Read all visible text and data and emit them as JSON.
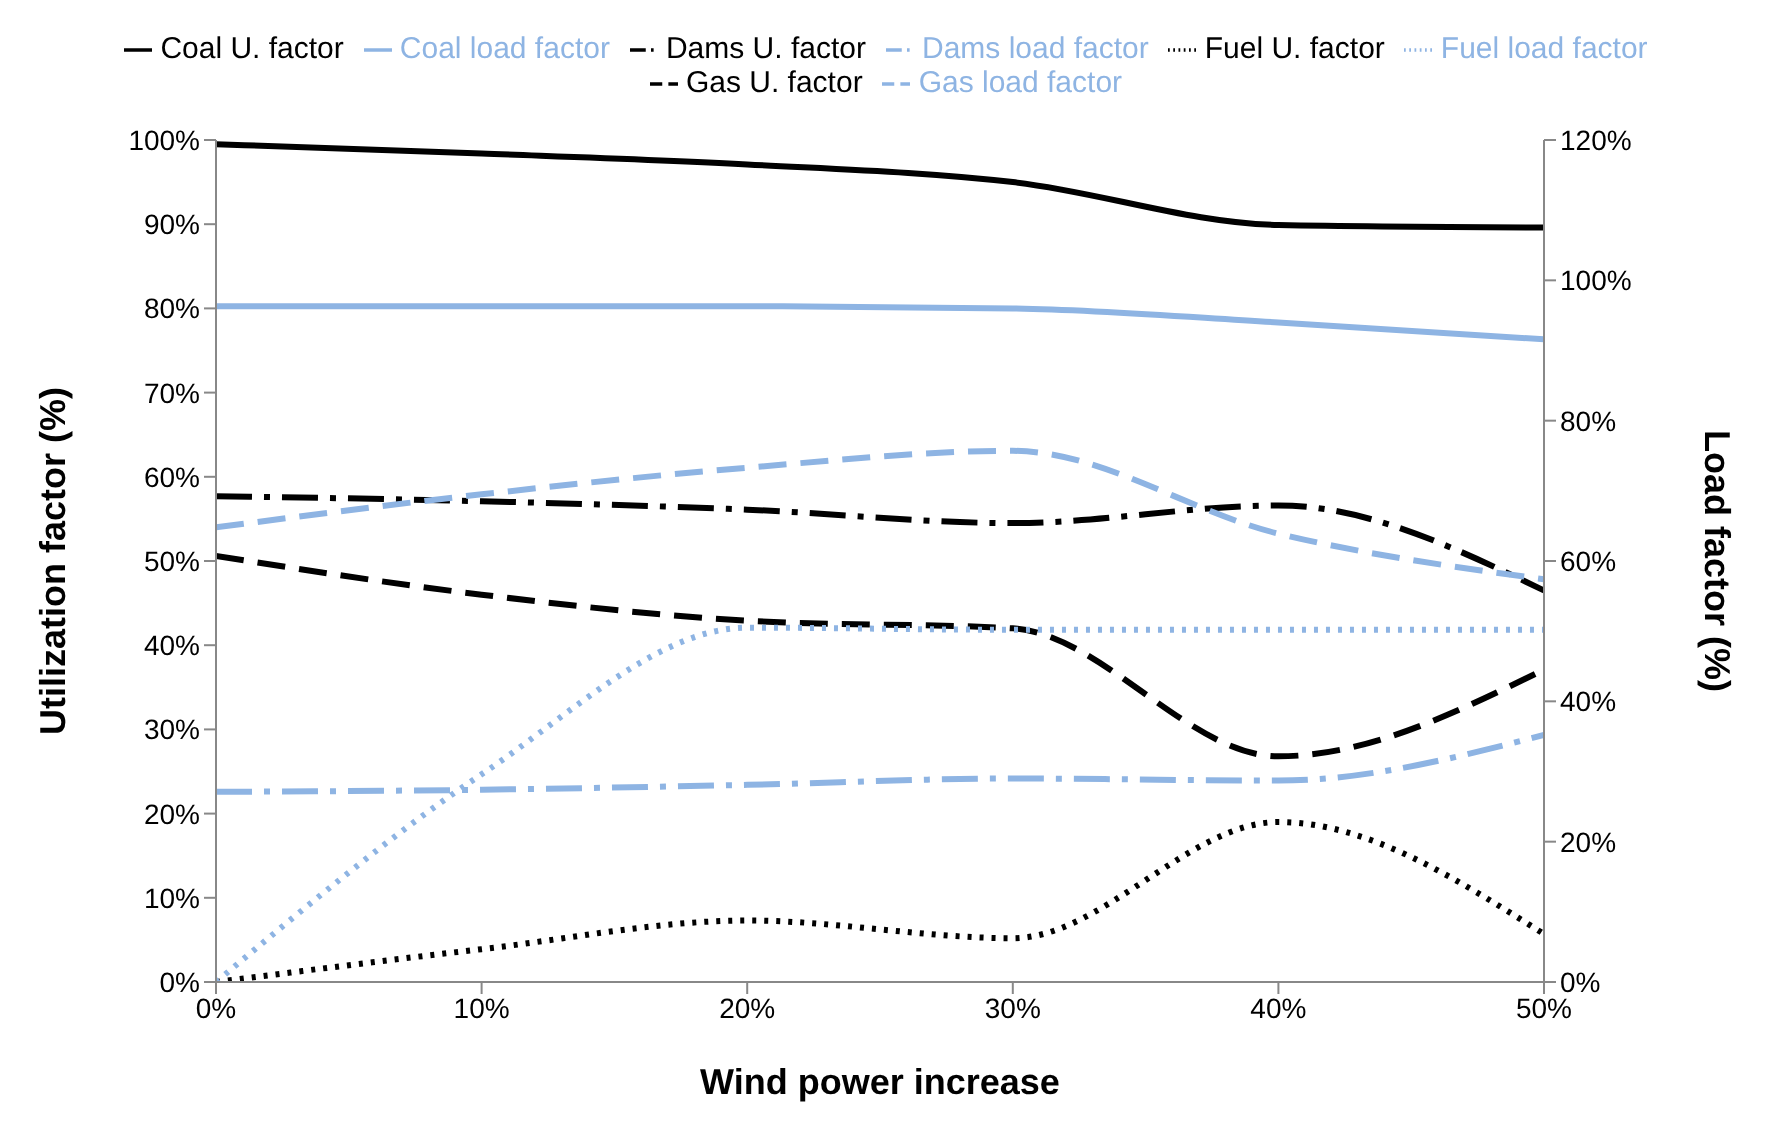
{
  "chart_data": {
    "type": "line",
    "xlabel": "Wind power increase",
    "ylabel": "Utilization factor (%)",
    "y2label": "Load factor (%)",
    "x": [
      0,
      10,
      20,
      30,
      40,
      50
    ],
    "xlim": [
      0,
      50
    ],
    "xticks": [
      {
        "value": 0,
        "label": "0%"
      },
      {
        "value": 10,
        "label": "10%"
      },
      {
        "value": 20,
        "label": "20%"
      },
      {
        "value": 30,
        "label": "30%"
      },
      {
        "value": 40,
        "label": "40%"
      },
      {
        "value": 50,
        "label": "50%"
      }
    ],
    "ylim": [
      0,
      100
    ],
    "yticks": [
      {
        "value": 0,
        "label": "0%"
      },
      {
        "value": 10,
        "label": "10%"
      },
      {
        "value": 20,
        "label": "20%"
      },
      {
        "value": 30,
        "label": "30%"
      },
      {
        "value": 40,
        "label": "40%"
      },
      {
        "value": 50,
        "label": "50%"
      },
      {
        "value": 60,
        "label": "60%"
      },
      {
        "value": 70,
        "label": "70%"
      },
      {
        "value": 80,
        "label": "80%"
      },
      {
        "value": 90,
        "label": "90%"
      },
      {
        "value": 100,
        "label": "100%"
      }
    ],
    "y2lim": [
      0,
      120
    ],
    "y2ticks": [
      {
        "value": 0,
        "label": "0%"
      },
      {
        "value": 20,
        "label": "20%"
      },
      {
        "value": 40,
        "label": "40%"
      },
      {
        "value": 60,
        "label": "60%"
      },
      {
        "value": 80,
        "label": "80%"
      },
      {
        "value": 100,
        "label": "100%"
      },
      {
        "value": 120,
        "label": "120%"
      }
    ],
    "grid": false,
    "legend": "top",
    "marker": "none",
    "series": [
      {
        "name": "Coal U. factor",
        "color": "#000000",
        "line_style": "solid",
        "values": [
          99.5,
          98.4,
          97.1,
          95,
          89.9,
          89.6
        ]
      },
      {
        "name": "Gas U. factor",
        "color": "#000000",
        "line_style": "dashed",
        "values": [
          50.6,
          46,
          42.9,
          42,
          26.8,
          37.1
        ]
      },
      {
        "name": "Fuel U. factor",
        "color": "#000000",
        "line_style": "dotted",
        "values": [
          0,
          3.9,
          7.3,
          5.2,
          19,
          5.7
        ]
      },
      {
        "name": "Dams U. factor",
        "color": "#000000",
        "line_style": "dashdot",
        "values": [
          57.7,
          57.1,
          56.1,
          54.5,
          56.6,
          46.5
        ]
      },
      {
        "name": "Coal load factor",
        "color": "#8eb4e3",
        "line_style": "solid",
        "axis": "y2",
        "values": [
          96.3,
          96.3,
          96.3,
          96,
          94,
          91.6
        ]
      },
      {
        "name": "Gas load factor",
        "color": "#8eb4e3",
        "line_style": "dashed",
        "axis": "y2",
        "values": [
          64.8,
          69.5,
          73.3,
          75.7,
          63.9,
          57.4
        ]
      },
      {
        "name": "Fuel load factor",
        "color": "#8eb4e3",
        "line_style": "dotted",
        "axis": "y2",
        "values": [
          0,
          29.6,
          50.5,
          50.2,
          50.2,
          50.2
        ]
      },
      {
        "name": "Dams load factor",
        "color": "#8eb4e3",
        "line_style": "dashdot",
        "axis": "y2",
        "values": [
          27.1,
          27.4,
          28.1,
          29,
          28.7,
          35.2
        ]
      }
    ]
  }
}
